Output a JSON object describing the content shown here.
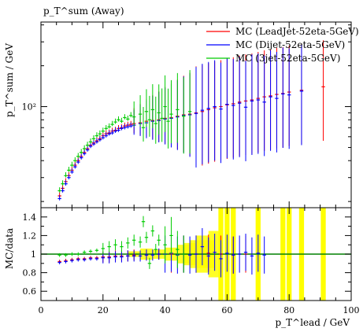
{
  "chart_data": [
    {
      "type": "scatter",
      "panel": "main",
      "title": "p_T^sum (Away)",
      "ylabel": "p_T^sum / GeV",
      "y_scale": "log",
      "ylim": [
        18,
        420
      ],
      "xlim": [
        0,
        100
      ],
      "ytick_labels": [
        "10²"
      ],
      "legend_position": "top-right",
      "series": [
        {
          "name": "MC (LeadJet-52eta-5GeV)",
          "color": "#ff0000",
          "points": [
            {
              "x": 6,
              "y": 22
            },
            {
              "x": 7,
              "y": 25
            },
            {
              "x": 8,
              "y": 28
            },
            {
              "x": 9,
              "y": 31
            },
            {
              "x": 10,
              "y": 34
            },
            {
              "x": 11,
              "y": 37
            },
            {
              "x": 12,
              "y": 40
            },
            {
              "x": 13,
              "y": 43
            },
            {
              "x": 14,
              "y": 46
            },
            {
              "x": 15,
              "y": 49
            },
            {
              "x": 16,
              "y": 52
            },
            {
              "x": 17,
              "y": 54
            },
            {
              "x": 18,
              "y": 56
            },
            {
              "x": 19,
              "y": 58
            },
            {
              "x": 20,
              "y": 61
            },
            {
              "x": 21,
              "y": 63
            },
            {
              "x": 22,
              "y": 64
            },
            {
              "x": 23,
              "y": 66
            },
            {
              "x": 24,
              "y": 67
            },
            {
              "x": 25,
              "y": 69
            },
            {
              "x": 26,
              "y": 70
            },
            {
              "x": 27,
              "y": 72
            },
            {
              "x": 28,
              "y": 73
            },
            {
              "x": 29,
              "y": 74
            },
            {
              "x": 30,
              "y": 75
            },
            {
              "x": 32,
              "y": 76
            },
            {
              "x": 34,
              "y": 78
            },
            {
              "x": 36,
              "y": 79
            },
            {
              "x": 38,
              "y": 80
            },
            {
              "x": 40,
              "y": 82
            },
            {
              "x": 42,
              "y": 83
            },
            {
              "x": 44,
              "y": 85
            },
            {
              "x": 46,
              "y": 87
            },
            {
              "x": 48,
              "y": 88
            },
            {
              "x": 50,
              "y": 90
            },
            {
              "x": 52,
              "y": 92
            },
            {
              "x": 54,
              "y": 95
            },
            {
              "x": 56,
              "y": 98
            },
            {
              "x": 58,
              "y": 100
            },
            {
              "x": 60,
              "y": 103
            },
            {
              "x": 62,
              "y": 105
            },
            {
              "x": 64,
              "y": 108
            },
            {
              "x": 66,
              "y": 110
            },
            {
              "x": 68,
              "y": 112
            },
            {
              "x": 70,
              "y": 115
            },
            {
              "x": 72,
              "y": 118
            },
            {
              "x": 74,
              "y": 120
            },
            {
              "x": 76,
              "y": 123
            },
            {
              "x": 78,
              "y": 125
            },
            {
              "x": 80,
              "y": 128
            },
            {
              "x": 84,
              "y": 132
            },
            {
              "x": 91,
              "y": 140
            }
          ]
        },
        {
          "name": "MC (Dijet-52eta-5GeV)",
          "color": "#0000ff",
          "points": [
            {
              "x": 6,
              "y": 21
            },
            {
              "x": 7,
              "y": 24
            },
            {
              "x": 8,
              "y": 27
            },
            {
              "x": 9,
              "y": 30
            },
            {
              "x": 10,
              "y": 33
            },
            {
              "x": 11,
              "y": 36
            },
            {
              "x": 12,
              "y": 39
            },
            {
              "x": 13,
              "y": 42
            },
            {
              "x": 14,
              "y": 45
            },
            {
              "x": 15,
              "y": 48
            },
            {
              "x": 16,
              "y": 51
            },
            {
              "x": 17,
              "y": 53
            },
            {
              "x": 18,
              "y": 55
            },
            {
              "x": 19,
              "y": 57
            },
            {
              "x": 20,
              "y": 59
            },
            {
              "x": 21,
              "y": 61
            },
            {
              "x": 22,
              "y": 63
            },
            {
              "x": 23,
              "y": 64
            },
            {
              "x": 24,
              "y": 66
            },
            {
              "x": 25,
              "y": 67
            },
            {
              "x": 26,
              "y": 69
            },
            {
              "x": 27,
              "y": 70
            },
            {
              "x": 28,
              "y": 71
            },
            {
              "x": 29,
              "y": 72
            },
            {
              "x": 30,
              "y": 73
            },
            {
              "x": 32,
              "y": 75
            },
            {
              "x": 34,
              "y": 76
            },
            {
              "x": 36,
              "y": 78
            },
            {
              "x": 38,
              "y": 79
            },
            {
              "x": 40,
              "y": 81
            },
            {
              "x": 42,
              "y": 82
            },
            {
              "x": 44,
              "y": 84
            },
            {
              "x": 46,
              "y": 86
            },
            {
              "x": 48,
              "y": 87
            },
            {
              "x": 50,
              "y": 89
            },
            {
              "x": 52,
              "y": 94
            },
            {
              "x": 54,
              "y": 97
            },
            {
              "x": 56,
              "y": 100
            },
            {
              "x": 58,
              "y": 96
            },
            {
              "x": 60,
              "y": 104
            },
            {
              "x": 62,
              "y": 102
            },
            {
              "x": 64,
              "y": 106
            },
            {
              "x": 66,
              "y": 99
            },
            {
              "x": 68,
              "y": 110
            },
            {
              "x": 70,
              "y": 112
            },
            {
              "x": 72,
              "y": 108
            },
            {
              "x": 74,
              "y": 118
            },
            {
              "x": 76,
              "y": 115
            },
            {
              "x": 78,
              "y": 124
            },
            {
              "x": 80,
              "y": 122
            },
            {
              "x": 84,
              "y": 130
            }
          ]
        },
        {
          "name": "MC (3jet-52eta-5GeV)",
          "color": "#00cc00",
          "points": [
            {
              "x": 6,
              "y": 24
            },
            {
              "x": 7,
              "y": 27
            },
            {
              "x": 8,
              "y": 31
            },
            {
              "x": 9,
              "y": 34
            },
            {
              "x": 10,
              "y": 37
            },
            {
              "x": 11,
              "y": 40
            },
            {
              "x": 12,
              "y": 43
            },
            {
              "x": 13,
              "y": 46
            },
            {
              "x": 14,
              "y": 49
            },
            {
              "x": 15,
              "y": 52
            },
            {
              "x": 16,
              "y": 55
            },
            {
              "x": 17,
              "y": 58
            },
            {
              "x": 18,
              "y": 61
            },
            {
              "x": 19,
              "y": 63
            },
            {
              "x": 20,
              "y": 66
            },
            {
              "x": 21,
              "y": 69
            },
            {
              "x": 22,
              "y": 71
            },
            {
              "x": 23,
              "y": 74
            },
            {
              "x": 24,
              "y": 77
            },
            {
              "x": 25,
              "y": 80
            },
            {
              "x": 26,
              "y": 78
            },
            {
              "x": 27,
              "y": 83
            },
            {
              "x": 28,
              "y": 81
            },
            {
              "x": 29,
              "y": 86
            },
            {
              "x": 30,
              "y": 84
            },
            {
              "x": 32,
              "y": 88
            },
            {
              "x": 33,
              "y": 70
            },
            {
              "x": 34,
              "y": 92
            },
            {
              "x": 35,
              "y": 80
            },
            {
              "x": 36,
              "y": 95
            },
            {
              "x": 37,
              "y": 75
            },
            {
              "x": 38,
              "y": 90
            },
            {
              "x": 39,
              "y": 82
            },
            {
              "x": 40,
              "y": 100
            },
            {
              "x": 41,
              "y": 78
            },
            {
              "x": 42,
              "y": 88
            },
            {
              "x": 44,
              "y": 95
            },
            {
              "x": 46,
              "y": 85
            },
            {
              "x": 48,
              "y": 92
            }
          ]
        }
      ]
    },
    {
      "type": "scatter",
      "panel": "ratio",
      "ylabel": "MC/data",
      "xlabel": "p_T^lead / GeV",
      "xlim": [
        0,
        100
      ],
      "ylim": [
        0.5,
        1.5
      ],
      "xtick_labels": [
        "0",
        "20",
        "40",
        "60",
        "80",
        "100"
      ],
      "ytick_labels": [
        "0.6",
        "0.8",
        "1",
        "1.2",
        "1.4"
      ],
      "reference_line": 1.0,
      "reference_color": "#008000",
      "data_band_color": "#ffff00",
      "series": [
        {
          "name": "MC (LeadJet-52eta-5GeV)",
          "color": "#ff0000",
          "points": [
            {
              "x": 6,
              "y": 0.92
            },
            {
              "x": 8,
              "y": 0.93
            },
            {
              "x": 10,
              "y": 0.94
            },
            {
              "x": 12,
              "y": 0.95
            },
            {
              "x": 14,
              "y": 0.95
            },
            {
              "x": 16,
              "y": 0.96
            },
            {
              "x": 18,
              "y": 0.96
            },
            {
              "x": 20,
              "y": 0.97
            },
            {
              "x": 22,
              "y": 0.97
            },
            {
              "x": 24,
              "y": 0.98
            },
            {
              "x": 26,
              "y": 0.98
            },
            {
              "x": 28,
              "y": 0.98
            },
            {
              "x": 30,
              "y": 0.99
            },
            {
              "x": 34,
              "y": 0.99
            },
            {
              "x": 38,
              "y": 1.0
            },
            {
              "x": 42,
              "y": 1.0
            },
            {
              "x": 46,
              "y": 1.0
            },
            {
              "x": 50,
              "y": 1.0
            },
            {
              "x": 54,
              "y": 1.01
            },
            {
              "x": 58,
              "y": 1.0
            },
            {
              "x": 62,
              "y": 0.99
            },
            {
              "x": 66,
              "y": 1.0
            }
          ]
        },
        {
          "name": "MC (Dijet-52eta-5GeV)",
          "color": "#0000ff",
          "points": [
            {
              "x": 6,
              "y": 0.91
            },
            {
              "x": 8,
              "y": 0.92
            },
            {
              "x": 10,
              "y": 0.93
            },
            {
              "x": 12,
              "y": 0.94
            },
            {
              "x": 14,
              "y": 0.94
            },
            {
              "x": 16,
              "y": 0.95
            },
            {
              "x": 18,
              "y": 0.95
            },
            {
              "x": 20,
              "y": 0.96
            },
            {
              "x": 22,
              "y": 0.96
            },
            {
              "x": 24,
              "y": 0.97
            },
            {
              "x": 26,
              "y": 0.97
            },
            {
              "x": 28,
              "y": 0.98
            },
            {
              "x": 30,
              "y": 0.98
            },
            {
              "x": 32,
              "y": 0.98
            },
            {
              "x": 34,
              "y": 0.99
            },
            {
              "x": 36,
              "y": 0.99
            },
            {
              "x": 38,
              "y": 1.0
            },
            {
              "x": 40,
              "y": 1.0
            },
            {
              "x": 42,
              "y": 1.01
            },
            {
              "x": 44,
              "y": 0.99
            },
            {
              "x": 46,
              "y": 1.0
            },
            {
              "x": 48,
              "y": 0.99
            },
            {
              "x": 50,
              "y": 1.0
            },
            {
              "x": 52,
              "y": 1.08
            },
            {
              "x": 54,
              "y": 0.98
            },
            {
              "x": 56,
              "y": 1.02
            },
            {
              "x": 58,
              "y": 0.95
            },
            {
              "x": 60,
              "y": 1.01
            },
            {
              "x": 62,
              "y": 0.99
            },
            {
              "x": 64,
              "y": 1.0
            },
            {
              "x": 66,
              "y": 1.02
            },
            {
              "x": 68,
              "y": 0.98
            },
            {
              "x": 70,
              "y": 1.01
            },
            {
              "x": 72,
              "y": 0.99
            }
          ]
        },
        {
          "name": "MC (3jet-52eta-5GeV)",
          "color": "#00cc00",
          "points": [
            {
              "x": 6,
              "y": 0.99
            },
            {
              "x": 8,
              "y": 0.99
            },
            {
              "x": 10,
              "y": 1.0
            },
            {
              "x": 12,
              "y": 1.0
            },
            {
              "x": 14,
              "y": 1.02
            },
            {
              "x": 16,
              "y": 1.03
            },
            {
              "x": 18,
              "y": 1.04
            },
            {
              "x": 20,
              "y": 1.06
            },
            {
              "x": 22,
              "y": 1.08
            },
            {
              "x": 24,
              "y": 1.1
            },
            {
              "x": 26,
              "y": 1.08
            },
            {
              "x": 28,
              "y": 1.12
            },
            {
              "x": 30,
              "y": 1.15
            },
            {
              "x": 32,
              "y": 1.13
            },
            {
              "x": 33,
              "y": 1.35
            },
            {
              "x": 34,
              "y": 1.18
            },
            {
              "x": 35,
              "y": 0.9
            },
            {
              "x": 36,
              "y": 1.25
            },
            {
              "x": 37,
              "y": 1.05
            },
            {
              "x": 38,
              "y": 1.15
            },
            {
              "x": 40,
              "y": 1.1
            },
            {
              "x": 42,
              "y": 1.2
            },
            {
              "x": 44,
              "y": 1.05
            },
            {
              "x": 46,
              "y": 1.0
            }
          ]
        }
      ]
    }
  ]
}
